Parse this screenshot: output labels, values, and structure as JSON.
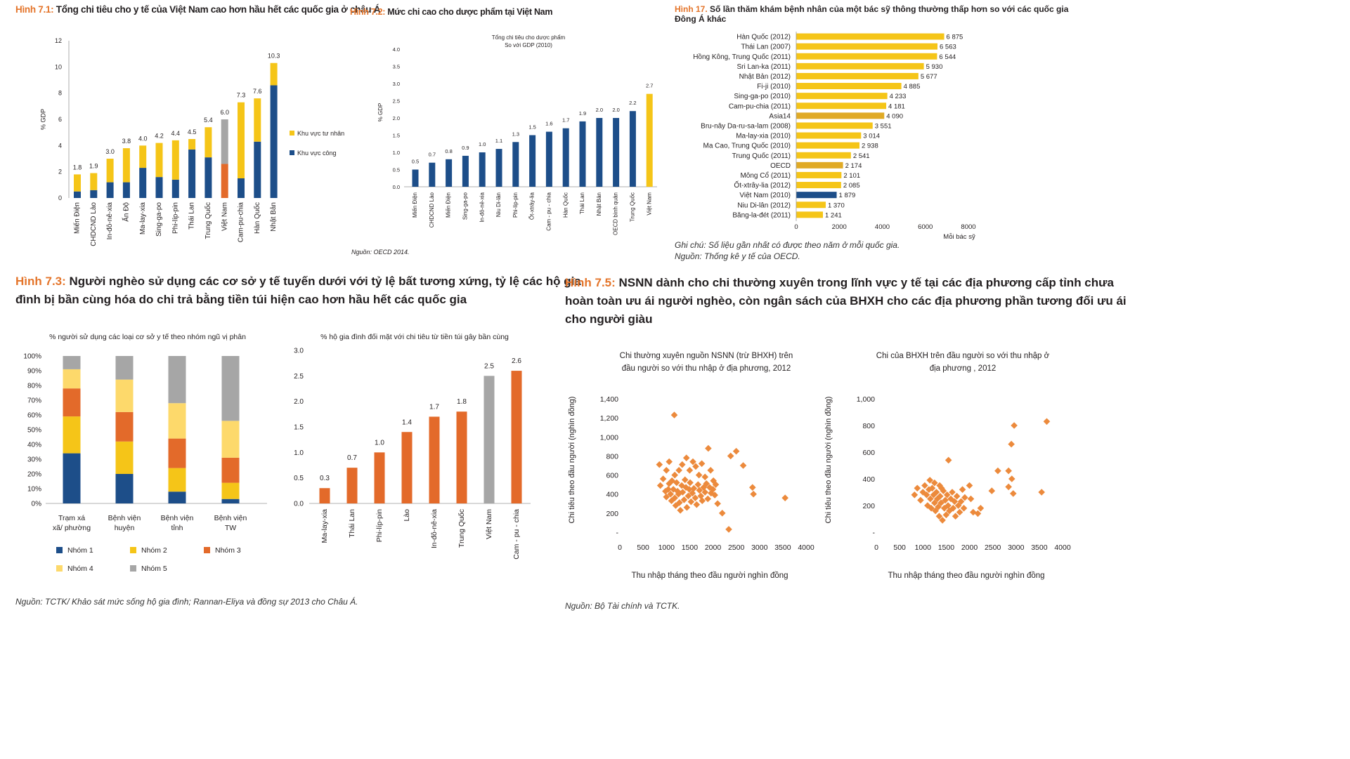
{
  "colors": {
    "navy": "#1d4e89",
    "yellow": "#f5c518",
    "orange": "#e36a2a",
    "grey": "#a6a6a6",
    "light_yellow": "#fdd96b",
    "dark_yellow": "#e0aa26"
  },
  "fig71": {
    "title_fig": "Hình 7.1:",
    "title_text": " Tổng chi tiêu cho y tế của Việt Nam cao hơn hầu hết các quốc gia ở châu Á",
    "ylabel": "% GDP",
    "yticks": [
      "0",
      "2",
      "4",
      "6",
      "8",
      "10",
      "12"
    ],
    "legend": [
      "Khu vực tư nhân",
      "Khu vực công"
    ]
  },
  "fig72": {
    "title_fig": "Hình 7.2:",
    "title_text": " Mức chi cao cho dược phẩm tại Việt Nam",
    "chart_title_line1": "Tổng chi tiêu cho dược phẩm",
    "chart_title_line2": "So với GDP (2010)",
    "ylabel": "% GDP",
    "yticks": [
      "0.0",
      "0.5",
      "1.0",
      "1.5",
      "2.0",
      "2.5",
      "3.0",
      "3.5",
      "4.0"
    ],
    "source": "Nguồn: OECD 2014."
  },
  "fig17": {
    "title_fig": "Hình 17.",
    "title_text_line1": " Số lần thăm khám bệnh nhân của một bác sỹ thông thường thấp hơn so với các quốc gia",
    "title_text_line2": "Đông Á khác",
    "xticks": [
      "0",
      "2000",
      "4000",
      "6000",
      "8000"
    ],
    "xlabel": "Mỗi bác sỹ",
    "note": "Ghi chú: Số liệu gần nhất có được theo năm ở mỗi quốc gia.",
    "source": "Nguồn: Thống kê y tế của OECD."
  },
  "fig73": {
    "title_fig": "Hình 7.3:",
    "title_text_line1": " Người nghèo sử dụng các cơ sở y tế tuyến dưới với tỷ lệ bất tương xứng, tỷ lệ các hộ gia",
    "title_text_line2": "đình bị bần cùng hóa do chi trả bằng tiền túi hiện cao hơn hầu hết các quốc gia",
    "left_title": "% người sử dụng các loại cơ sở y tế theo nhóm ngũ vị phân",
    "right_title": "% hộ gia đình đối mặt với chi tiêu từ tiền túi gây bần cùng",
    "left_yticks": [
      "0%",
      "10%",
      "20%",
      "30%",
      "40%",
      "50%",
      "60%",
      "70%",
      "80%",
      "90%",
      "100%"
    ],
    "right_yticks": [
      "0.0",
      "0.5",
      "1.0",
      "1.5",
      "2.0",
      "2.5",
      "3.0"
    ],
    "legend": [
      "Nhóm 1",
      "Nhóm 2",
      "Nhóm 3",
      "Nhóm 4",
      "Nhóm 5"
    ],
    "source": "Nguồn: TCTK/ Khảo sát mức sống hộ gia đình; Rannan-Eliya và đồng sự 2013 cho Châu Á."
  },
  "fig75": {
    "title_fig": "Hình 7.5:",
    "title_text_line1": " NSNN dành cho chi thường xuyên trong lĩnh vực y tế tại các địa phương cấp tỉnh chưa",
    "title_text_line2": "hoàn toàn ưu ái người nghèo, còn ngân sách của BHXH cho các địa phương phần tương đối ưu ái",
    "title_text_line3": "cho người giàu",
    "left_title_line1": "Chi thường xuyên nguồn NSNN (trừ BHXH) trên",
    "left_title_line2": "đầu người so với thu nhập ở địa phương, 2012",
    "right_title_line1": "Chi của BHXH trên đầu người so với thu nhập ở",
    "right_title_line2": "địa phương , 2012",
    "ylabel": "Chi tiêu theo đầu người (nghìn đồng)",
    "xlabel": "Thu nhập tháng theo đầu người nghìn đồng",
    "xticks": [
      "0",
      "500",
      "1000",
      "1500",
      "2000",
      "2500",
      "3000",
      "3500",
      "4000"
    ],
    "left_yticks": [
      "-",
      "200",
      "400",
      "600",
      "800",
      "1,000",
      "1,200",
      "1,400"
    ],
    "right_yticks": [
      "-",
      "200",
      "400",
      "600",
      "800",
      "1,000"
    ],
    "source": "Nguồn: Bộ Tài chính và TCTK."
  },
  "chart_data": [
    {
      "id": "fig71",
      "type": "bar",
      "stacked": true,
      "categories": [
        "Miến Điện",
        "CHDCND Lào",
        "In-đô-nê-xia",
        "Ấn Độ",
        "Ma-lay-xia",
        "Sing-ga-po",
        "Phi-líp-pin",
        "Thái Lan",
        "Trung Quốc",
        "Việt Nam",
        "Cam-pu-chia",
        "Hàn Quốc",
        "Nhật Bản"
      ],
      "series": [
        {
          "name": "Khu vực công",
          "values": [
            0.5,
            0.6,
            1.2,
            1.2,
            2.3,
            1.6,
            1.4,
            3.7,
            3.1,
            2.6,
            1.5,
            4.3,
            8.6
          ]
        },
        {
          "name": "Khu vực tư nhân",
          "values": [
            1.3,
            1.3,
            1.8,
            2.6,
            1.7,
            2.6,
            3.0,
            0.8,
            2.3,
            3.4,
            5.8,
            3.3,
            1.7
          ]
        }
      ],
      "totals": [
        "1.8",
        "1.9",
        "3.0",
        "3.8",
        "4.0",
        "4.2",
        "4.4",
        "4.5",
        "5.4",
        "6.0",
        "7.3",
        "7.6",
        "10.3"
      ],
      "ylabel": "% GDP",
      "ylim": [
        0,
        12
      ]
    },
    {
      "id": "fig72",
      "type": "bar",
      "categories": [
        "Miến Điện",
        "CHDCND Lào",
        "Miến Điện",
        "Sing-ga-po",
        "In-đô-nê-xia",
        "Niu Di-lân",
        "Phi-líp-pin",
        "Ốt-xtrây-lia",
        "Cam - pu - chia",
        "Hàn Quốc",
        "Thái Lan",
        "Nhật Bản",
        "OECD bình quân",
        "Trung Quốc",
        "Việt Nam"
      ],
      "values": [
        0.5,
        0.7,
        0.8,
        0.9,
        1.0,
        1.1,
        1.3,
        1.5,
        1.6,
        1.7,
        1.9,
        2.0,
        2.0,
        2.2,
        2.7
      ],
      "labels": [
        "0.5",
        "0.7",
        "0.8",
        "0.9",
        "1.0",
        "1.1",
        "1.3",
        "1.5",
        "1.6",
        "1.7",
        "1.9",
        "2.0",
        "2.0",
        "2.2",
        "2.7"
      ],
      "title": "Tổng chi tiêu cho dược phẩm So với GDP (2010)",
      "ylabel": "% GDP",
      "ylim": [
        0,
        4
      ]
    },
    {
      "id": "fig17",
      "type": "bar",
      "orientation": "horizontal",
      "categories": [
        "Hàn Quốc (2012)",
        "Thái Lan (2007)",
        "Hồng Kông, Trung Quốc (2011)",
        "Sri Lan-ka (2011)",
        "Nhật Bản (2012)",
        "Fi-ji (2010)",
        "Sing-ga-po (2010)",
        "Cam-pu-chia (2011)",
        "Asia14",
        "Bru-nây Da-ru-sa-lam (2008)",
        "Ma-lay-xia (2010)",
        "Ma Cao, Trung Quốc (2010)",
        "Trung Quốc (2011)",
        "OECD",
        "Mông Cổ (2011)",
        "Ốt-xtrây-lia (2012)",
        "Việt Nam (2010)",
        "Niu Di-lân (2012)",
        "Băng-la-đét (2011)"
      ],
      "values": [
        6875,
        6563,
        6544,
        5930,
        5677,
        4885,
        4233,
        4181,
        4090,
        3551,
        3014,
        2938,
        2541,
        2174,
        2101,
        2085,
        1879,
        1370,
        1241
      ],
      "labels": [
        "6 875",
        "6 563",
        "6 544",
        "5 930",
        "5 677",
        "4 885",
        "4 233",
        "4 181",
        "4 090",
        "3 551",
        "3 014",
        "2 938",
        "2 541",
        "2 174",
        "2 101",
        "2 085",
        "1 879",
        "1 370",
        "1 241"
      ],
      "xlabel": "Mỗi bác sỹ",
      "xlim": [
        0,
        8000
      ]
    },
    {
      "id": "fig73a",
      "type": "bar",
      "stacked": true,
      "percent": true,
      "title": "% người sử dụng các loại cơ sở y tế theo nhóm ngũ vị phân",
      "categories": [
        "Trạm xá xã/ phường",
        "Bệnh viện huyện",
        "Bệnh viện tỉnh",
        "Bệnh viện TW"
      ],
      "series": [
        {
          "name": "Nhóm 1",
          "values": [
            34,
            20,
            8,
            3
          ]
        },
        {
          "name": "Nhóm 2",
          "values": [
            25,
            22,
            16,
            11
          ]
        },
        {
          "name": "Nhóm 3",
          "values": [
            19,
            20,
            20,
            17
          ]
        },
        {
          "name": "Nhóm 4",
          "values": [
            13,
            22,
            24,
            25
          ]
        },
        {
          "name": "Nhóm 5",
          "values": [
            9,
            16,
            32,
            44
          ]
        }
      ],
      "ylim": [
        0,
        100
      ]
    },
    {
      "id": "fig73b",
      "type": "bar",
      "title": "% hộ gia đình đối mặt với chi tiêu từ tiền túi gây bần cùng",
      "categories": [
        "Ma-lay-xia",
        "Thái Lan",
        "Phi-líp-pin",
        "Lào",
        "In-đô-nê-xia",
        "Trung Quốc",
        "Việt Nam",
        "Cam - pu - chia"
      ],
      "values": [
        0.3,
        0.7,
        1.0,
        1.4,
        1.7,
        1.8,
        2.5,
        2.6
      ],
      "labels": [
        "0.3",
        "0.7",
        "1.0",
        "1.4",
        "1.7",
        "1.8",
        "2.5",
        "2.6"
      ],
      "ylim": [
        0,
        3
      ]
    },
    {
      "id": "fig75a",
      "type": "scatter",
      "title": "Chi thường xuyên nguồn NSNN (trừ BHXH) trên đầu người so với thu nhập ở địa phương, 2012",
      "xlabel": "Thu nhập tháng theo đầu người nghìn đồng",
      "ylabel": "Chi tiêu theo đầu người (nghìn đồng)",
      "xlim": [
        0,
        4000
      ],
      "ylim": [
        0,
        1400
      ],
      "points": [
        [
          1170,
          1230
        ],
        [
          850,
          710
        ],
        [
          1060,
          740
        ],
        [
          1000,
          650
        ],
        [
          1120,
          540
        ],
        [
          1180,
          600
        ],
        [
          1270,
          650
        ],
        [
          1340,
          710
        ],
        [
          1430,
          780
        ],
        [
          1500,
          650
        ],
        [
          1570,
          740
        ],
        [
          1630,
          690
        ],
        [
          1700,
          600
        ],
        [
          1760,
          720
        ],
        [
          1830,
          580
        ],
        [
          1900,
          880
        ],
        [
          1950,
          650
        ],
        [
          2010,
          540
        ],
        [
          2060,
          500
        ],
        [
          2380,
          800
        ],
        [
          2500,
          850
        ],
        [
          2650,
          700
        ],
        [
          2850,
          470
        ],
        [
          2870,
          400
        ],
        [
          3550,
          360
        ],
        [
          870,
          490
        ],
        [
          930,
          560
        ],
        [
          980,
          430
        ],
        [
          1000,
          370
        ],
        [
          1040,
          450
        ],
        [
          1060,
          510
        ],
        [
          1090,
          400
        ],
        [
          1110,
          330
        ],
        [
          1150,
          450
        ],
        [
          1180,
          360
        ],
        [
          1200,
          280
        ],
        [
          1220,
          520
        ],
        [
          1240,
          430
        ],
        [
          1260,
          400
        ],
        [
          1280,
          310
        ],
        [
          1300,
          230
        ],
        [
          1330,
          490
        ],
        [
          1350,
          420
        ],
        [
          1380,
          340
        ],
        [
          1400,
          550
        ],
        [
          1420,
          470
        ],
        [
          1440,
          260
        ],
        [
          1470,
          380
        ],
        [
          1490,
          450
        ],
        [
          1510,
          520
        ],
        [
          1530,
          320
        ],
        [
          1560,
          410
        ],
        [
          1590,
          460
        ],
        [
          1620,
          360
        ],
        [
          1650,
          290
        ],
        [
          1680,
          500
        ],
        [
          1710,
          440
        ],
        [
          1740,
          380
        ],
        [
          1770,
          330
        ],
        [
          1800,
          470
        ],
        [
          1830,
          420
        ],
        [
          1860,
          510
        ],
        [
          1890,
          350
        ],
        [
          1930,
          470
        ],
        [
          1960,
          410
        ],
        [
          2000,
          450
        ],
        [
          2040,
          390
        ],
        [
          2100,
          300
        ],
        [
          2200,
          200
        ],
        [
          2340,
          30
        ]
      ]
    },
    {
      "id": "fig75b",
      "type": "scatter",
      "title": "Chi của BHXH trên đầu người so với thu nhập ở địa phương , 2012",
      "xlabel": "Thu nhập tháng theo đầu người nghìn đồng",
      "ylabel": "Chi tiêu theo đầu người (nghìn đồng)",
      "xlim": [
        0,
        4000
      ],
      "ylim": [
        0,
        1000
      ],
      "points": [
        [
          3660,
          830
        ],
        [
          2960,
          800
        ],
        [
          2900,
          660
        ],
        [
          1550,
          540
        ],
        [
          2610,
          460
        ],
        [
          2840,
          460
        ],
        [
          2910,
          400
        ],
        [
          3550,
          300
        ],
        [
          2940,
          290
        ],
        [
          2840,
          340
        ],
        [
          2480,
          310
        ],
        [
          820,
          280
        ],
        [
          880,
          330
        ],
        [
          950,
          240
        ],
        [
          1000,
          300
        ],
        [
          1040,
          350
        ],
        [
          1080,
          280
        ],
        [
          1100,
          200
        ],
        [
          1130,
          320
        ],
        [
          1160,
          250
        ],
        [
          1180,
          180
        ],
        [
          1200,
          330
        ],
        [
          1230,
          280
        ],
        [
          1250,
          220
        ],
        [
          1270,
          160
        ],
        [
          1290,
          300
        ],
        [
          1310,
          250
        ],
        [
          1330,
          190
        ],
        [
          1350,
          120
        ],
        [
          1370,
          270
        ],
        [
          1390,
          220
        ],
        [
          1420,
          90
        ],
        [
          1440,
          310
        ],
        [
          1460,
          180
        ],
        [
          1480,
          240
        ],
        [
          1500,
          130
        ],
        [
          1520,
          280
        ],
        [
          1540,
          200
        ],
        [
          1570,
          160
        ],
        [
          1600,
          250
        ],
        [
          1630,
          300
        ],
        [
          1650,
          180
        ],
        [
          1680,
          230
        ],
        [
          1700,
          120
        ],
        [
          1730,
          270
        ],
        [
          1760,
          200
        ],
        [
          1790,
          150
        ],
        [
          1820,
          230
        ],
        [
          1850,
          320
        ],
        [
          1880,
          180
        ],
        [
          1900,
          260
        ],
        [
          2000,
          350
        ],
        [
          2030,
          250
        ],
        [
          2080,
          150
        ],
        [
          2180,
          140
        ],
        [
          2240,
          180
        ],
        [
          1400,
          330
        ],
        [
          1360,
          350
        ],
        [
          1250,
          370
        ],
        [
          1150,
          390
        ]
      ]
    }
  ]
}
